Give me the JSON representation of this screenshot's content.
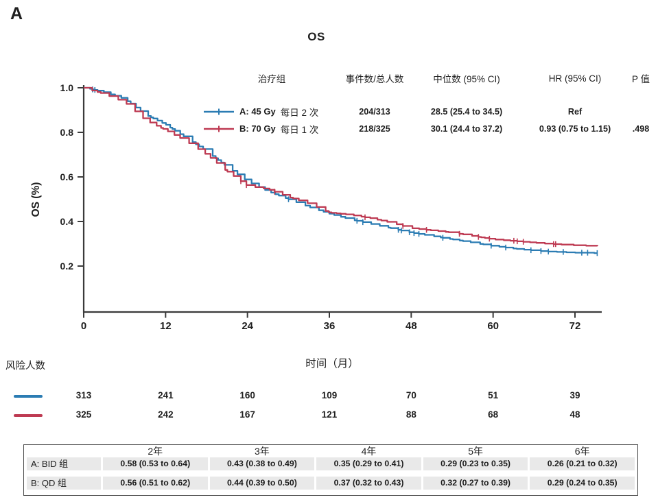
{
  "panel_label": "A",
  "colors": {
    "series_a": "#2b7cb3",
    "series_b": "#be3a52",
    "axis": "#3a3a3a",
    "text": "#1f1f1f",
    "table_stripe": "#e9e9e9"
  },
  "chart_data": {
    "type": "line",
    "subtype": "kaplan-meier-step",
    "title": "OS",
    "xlabel": "时间（月）",
    "ylabel": "OS (%)",
    "xlim": [
      0,
      75.5
    ],
    "ylim": [
      0,
      1.0
    ],
    "xticks": [
      0,
      12,
      24,
      36,
      48,
      60,
      72
    ],
    "yticks": [
      1.0,
      0.8,
      0.6,
      0.4,
      0.2
    ],
    "grid": false,
    "legend_position": "top-right",
    "legend": {
      "headers": [
        "治疗组",
        "事件数/总人数",
        "中位数 (95% CI)",
        "HR (95% CI)",
        "P 值"
      ],
      "rows": [
        {
          "label_en": "A: 45 Gy",
          "label_cn": "每日 2 次",
          "events_total": "204/313",
          "median": "28.5 (25.4 to 34.5)",
          "hr": "Ref",
          "p": ""
        },
        {
          "label_en": "B: 70 Gy",
          "label_cn": "每日 1 次",
          "events_total": "218/325",
          "median": "30.1 (24.4 to 37.2)",
          "hr": "0.93 (0.75 to 1.15)",
          "p": ".498"
        }
      ]
    },
    "series": [
      {
        "name": "A: 45 Gy 每日 2 次",
        "color": "#2b7cb3",
        "points": [
          [
            0,
            1.0
          ],
          [
            1,
            0.995
          ],
          [
            3,
            0.98
          ],
          [
            6,
            0.95
          ],
          [
            9,
            0.88
          ],
          [
            12,
            0.835
          ],
          [
            15,
            0.775
          ],
          [
            18,
            0.715
          ],
          [
            21,
            0.645
          ],
          [
            24,
            0.58
          ],
          [
            27,
            0.535
          ],
          [
            30,
            0.5
          ],
          [
            33,
            0.465
          ],
          [
            36,
            0.435
          ],
          [
            39,
            0.41
          ],
          [
            42,
            0.39
          ],
          [
            45,
            0.37
          ],
          [
            48,
            0.35
          ],
          [
            51,
            0.335
          ],
          [
            54,
            0.32
          ],
          [
            57,
            0.305
          ],
          [
            60,
            0.29
          ],
          [
            64,
            0.275
          ],
          [
            68,
            0.265
          ],
          [
            72,
            0.26
          ],
          [
            75.3,
            0.258
          ]
        ]
      },
      {
        "name": "B: 70 Gy 每日 1 次",
        "color": "#be3a52",
        "points": [
          [
            0,
            1.0
          ],
          [
            1,
            0.99
          ],
          [
            3,
            0.972
          ],
          [
            6,
            0.935
          ],
          [
            9,
            0.855
          ],
          [
            12,
            0.81
          ],
          [
            15,
            0.76
          ],
          [
            18,
            0.7
          ],
          [
            21,
            0.625
          ],
          [
            24,
            0.56
          ],
          [
            27,
            0.545
          ],
          [
            30,
            0.51
          ],
          [
            33,
            0.48
          ],
          [
            36,
            0.44
          ],
          [
            39,
            0.43
          ],
          [
            42,
            0.415
          ],
          [
            45,
            0.395
          ],
          [
            48,
            0.37
          ],
          [
            51,
            0.36
          ],
          [
            54,
            0.35
          ],
          [
            57,
            0.335
          ],
          [
            60,
            0.32
          ],
          [
            64,
            0.31
          ],
          [
            68,
            0.3
          ],
          [
            72,
            0.293
          ],
          [
            75.3,
            0.29
          ]
        ]
      }
    ],
    "risk_table": {
      "label": "风险人数",
      "times": [
        0,
        12,
        24,
        36,
        48,
        60,
        72
      ],
      "rows": [
        {
          "name": "A",
          "color": "#2b7cb3",
          "counts": [
            313,
            241,
            160,
            109,
            70,
            51,
            39
          ]
        },
        {
          "name": "B",
          "color": "#be3a52",
          "counts": [
            325,
            242,
            167,
            121,
            88,
            68,
            48
          ]
        }
      ]
    },
    "survival_table": {
      "headers": [
        "2年",
        "3年",
        "4年",
        "5年",
        "6年"
      ],
      "rows": [
        {
          "label": "A: BID 组",
          "cells": [
            "0.58 (0.53 to 0.64)",
            "0.43 (0.38 to 0.49)",
            "0.35 (0.29 to 0.41)",
            "0.29 (0.23 to 0.35)",
            "0.26 (0.21 to 0.32)"
          ]
        },
        {
          "label": "B: QD 组",
          "cells": [
            "0.56 (0.51 to 0.62)",
            "0.44 (0.39 to 0.50)",
            "0.37 (0.32 to 0.43)",
            "0.32 (0.27 to 0.39)",
            "0.29 (0.24 to 0.35)"
          ]
        }
      ]
    }
  }
}
